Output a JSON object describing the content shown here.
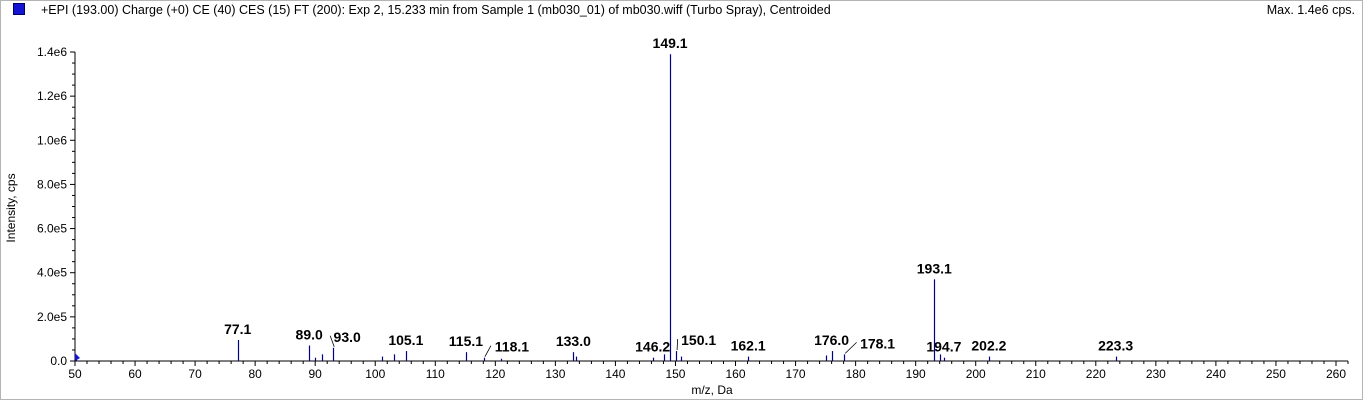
{
  "header": {
    "title": "+EPI (193.00) Charge (+0) CE (40) CES (15) FT (200): Exp 2, 15.233 min from Sample 1 (mb030_01) of mb030.wiff (Turbo Spray), Centroided",
    "max_label": "Max. 1.4e6 cps.",
    "legend_color": "#1414d2"
  },
  "chart_data": {
    "type": "bar",
    "xlabel": "m/z, Da",
    "ylabel": "Intensity, cps",
    "xlim": [
      50,
      262
    ],
    "ylim": [
      0,
      1400000
    ],
    "x_ticks": [
      50,
      60,
      70,
      80,
      90,
      100,
      110,
      120,
      130,
      140,
      150,
      160,
      170,
      180,
      190,
      200,
      210,
      220,
      230,
      240,
      250,
      260
    ],
    "y_ticks": [
      {
        "value": 0,
        "label": "0.0"
      },
      {
        "value": 200000,
        "label": "2.0e5"
      },
      {
        "value": 400000,
        "label": "4.0e5"
      },
      {
        "value": 600000,
        "label": "6.0e5"
      },
      {
        "value": 800000,
        "label": "8.0e5"
      },
      {
        "value": 1000000,
        "label": "1.0e6"
      },
      {
        "value": 1200000,
        "label": "1.2e6"
      },
      {
        "value": 1400000,
        "label": "1.4e6"
      }
    ],
    "bar_color": "#00008b",
    "peaks": [
      {
        "mz": 50.1,
        "intensity": 25000
      },
      {
        "mz": 77.1,
        "intensity": 95000
      },
      {
        "mz": 89.0,
        "intensity": 70000
      },
      {
        "mz": 90.0,
        "intensity": 15000
      },
      {
        "mz": 91.1,
        "intensity": 30000
      },
      {
        "mz": 93.0,
        "intensity": 60000
      },
      {
        "mz": 101.1,
        "intensity": 20000
      },
      {
        "mz": 103.1,
        "intensity": 30000
      },
      {
        "mz": 105.1,
        "intensity": 45000
      },
      {
        "mz": 115.1,
        "intensity": 40000
      },
      {
        "mz": 118.1,
        "intensity": 15000
      },
      {
        "mz": 121.0,
        "intensity": 10000
      },
      {
        "mz": 133.0,
        "intensity": 40000
      },
      {
        "mz": 133.5,
        "intensity": 20000
      },
      {
        "mz": 146.2,
        "intensity": 15000
      },
      {
        "mz": 148.1,
        "intensity": 30000
      },
      {
        "mz": 149.1,
        "intensity": 1390000
      },
      {
        "mz": 150.1,
        "intensity": 45000
      },
      {
        "mz": 151.0,
        "intensity": 20000
      },
      {
        "mz": 162.1,
        "intensity": 20000
      },
      {
        "mz": 175.0,
        "intensity": 25000
      },
      {
        "mz": 176.0,
        "intensity": 45000
      },
      {
        "mz": 178.1,
        "intensity": 30000
      },
      {
        "mz": 193.1,
        "intensity": 370000
      },
      {
        "mz": 194.0,
        "intensity": 30000
      },
      {
        "mz": 194.7,
        "intensity": 15000
      },
      {
        "mz": 202.2,
        "intensity": 20000
      },
      {
        "mz": 223.3,
        "intensity": 20000
      }
    ],
    "labels": [
      {
        "text": "77.1",
        "mz": 77.1,
        "intensity": 95000
      },
      {
        "text": "89.0",
        "mz": 89.0,
        "intensity": 70000
      },
      {
        "text": "93.0",
        "mz": 93.0,
        "intensity": 60000
      },
      {
        "text": "105.1",
        "mz": 105.1,
        "intensity": 45000
      },
      {
        "text": "115.1",
        "mz": 115.1,
        "intensity": 40000
      },
      {
        "text": "118.1",
        "mz": 118.1,
        "intensity": 15000
      },
      {
        "text": "133.0",
        "mz": 133.0,
        "intensity": 40000
      },
      {
        "text": "146.2",
        "mz": 146.2,
        "intensity": 15000
      },
      {
        "text": "149.1",
        "mz": 149.1,
        "intensity": 1390000
      },
      {
        "text": "150.1",
        "mz": 150.1,
        "intensity": 45000
      },
      {
        "text": "162.1",
        "mz": 162.1,
        "intensity": 20000
      },
      {
        "text": "176.0",
        "mz": 176.0,
        "intensity": 45000
      },
      {
        "text": "178.1",
        "mz": 178.1,
        "intensity": 30000
      },
      {
        "text": "193.1",
        "mz": 193.1,
        "intensity": 370000
      },
      {
        "text": "194.7",
        "mz": 194.7,
        "intensity": 15000
      },
      {
        "text": "202.2",
        "mz": 202.2,
        "intensity": 20000
      },
      {
        "text": "223.3",
        "mz": 223.3,
        "intensity": 20000
      }
    ]
  }
}
